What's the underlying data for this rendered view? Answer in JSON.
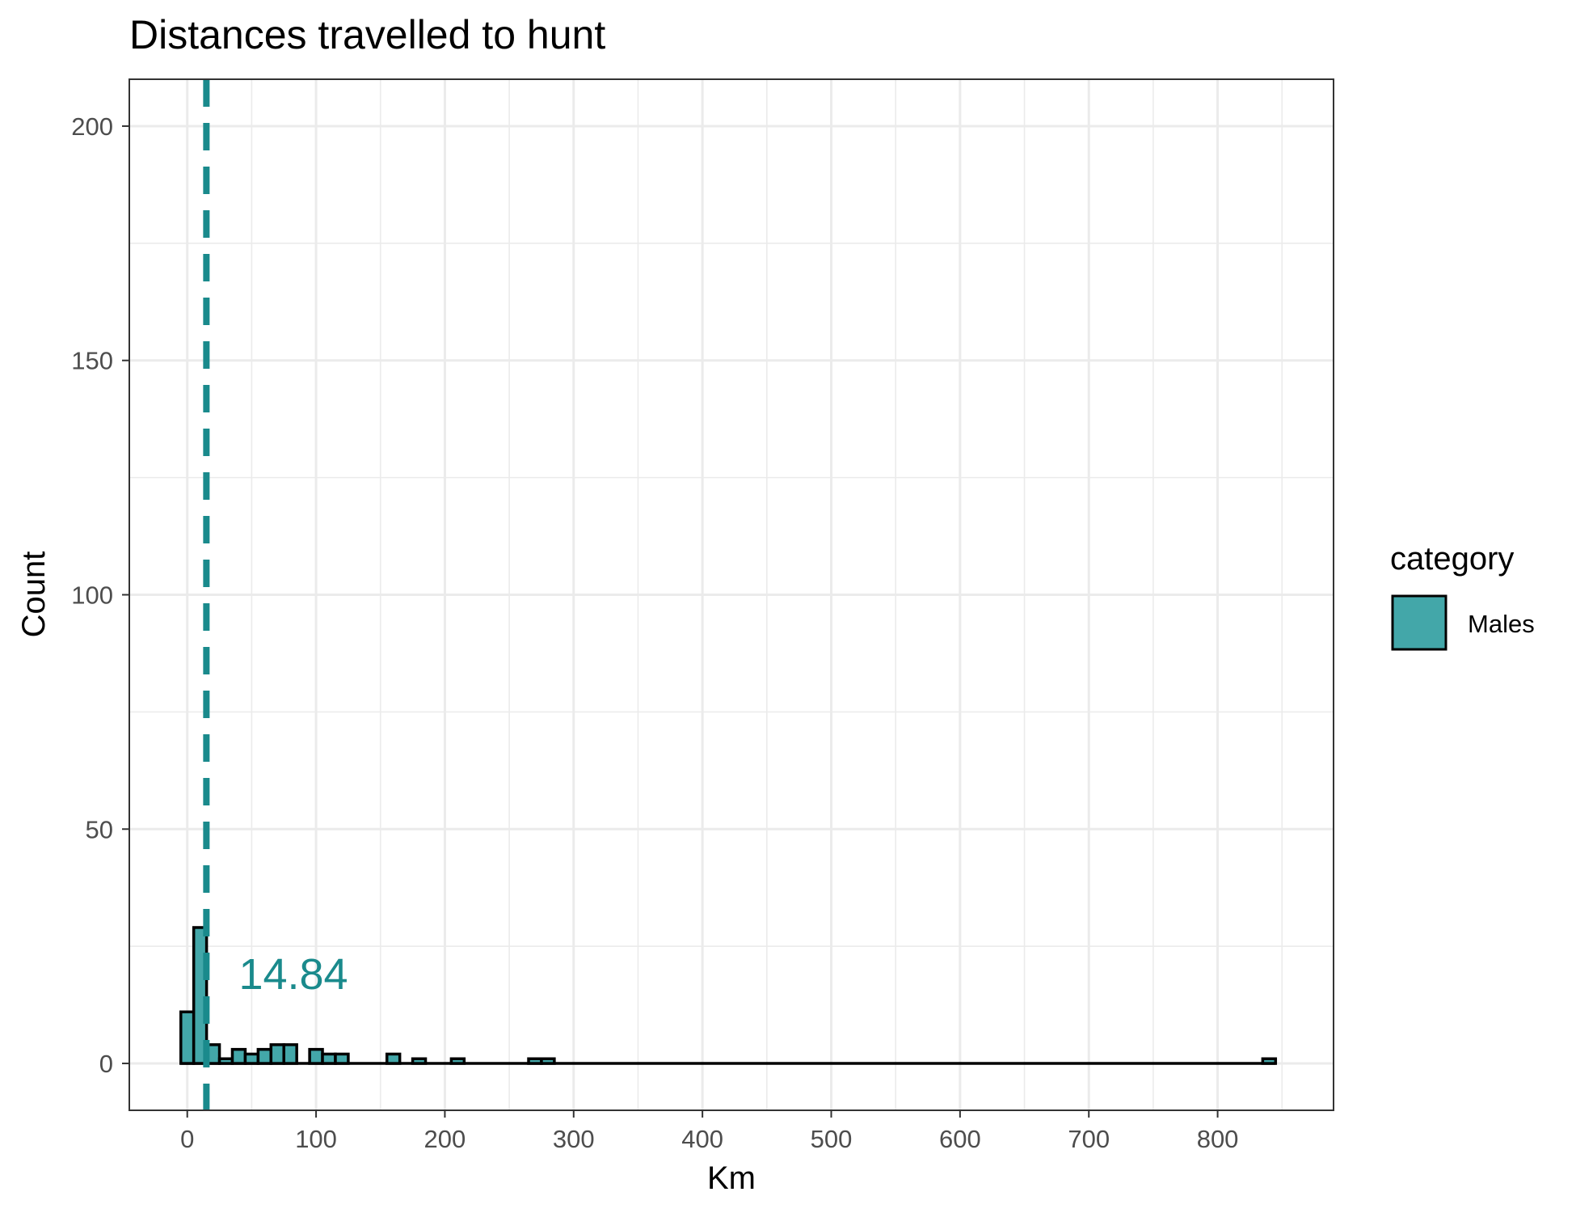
{
  "chart_data": {
    "type": "bar",
    "title": "Distances travelled to hunt",
    "xlabel": "Km",
    "ylabel": "Count",
    "xlim": [
      -45,
      890
    ],
    "ylim": [
      -10,
      210
    ],
    "x_ticks": [
      0,
      100,
      200,
      300,
      400,
      500,
      600,
      700,
      800
    ],
    "y_ticks": [
      0,
      50,
      100,
      150,
      200
    ],
    "bin_width": 10,
    "bins_start": 0,
    "bins": [
      {
        "x": 0,
        "count": 11
      },
      {
        "x": 10,
        "count": 29
      },
      {
        "x": 20,
        "count": 4
      },
      {
        "x": 30,
        "count": 1
      },
      {
        "x": 40,
        "count": 3
      },
      {
        "x": 50,
        "count": 2
      },
      {
        "x": 60,
        "count": 3
      },
      {
        "x": 70,
        "count": 4
      },
      {
        "x": 80,
        "count": 4
      },
      {
        "x": 100,
        "count": 3
      },
      {
        "x": 110,
        "count": 2
      },
      {
        "x": 120,
        "count": 2
      },
      {
        "x": 160,
        "count": 2
      },
      {
        "x": 180,
        "count": 1
      },
      {
        "x": 210,
        "count": 1
      },
      {
        "x": 270,
        "count": 1
      },
      {
        "x": 280,
        "count": 1
      },
      {
        "x": 840,
        "count": 1
      }
    ],
    "bins_end": 850,
    "reference_line": {
      "x": 14.84,
      "style": "dashed",
      "label": "14.84"
    },
    "legend": {
      "title": "category",
      "placement": "right",
      "entries": [
        "Males"
      ]
    },
    "grid": true,
    "colors": {
      "fill": "#43a7a9",
      "line": "#1a8a8c",
      "edge": "#000000",
      "grid": "#ebebeb"
    }
  }
}
